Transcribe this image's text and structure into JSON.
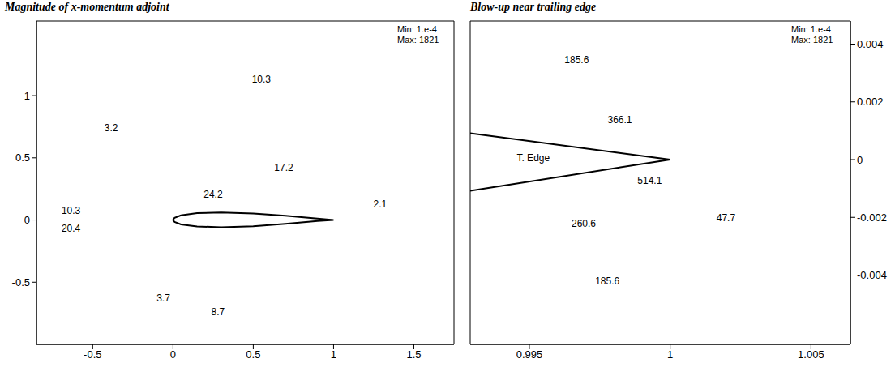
{
  "chart_data": [
    {
      "type": "contour",
      "title": "Magnitude of x-momentum adjoint",
      "xlim": [
        -0.85,
        1.75
      ],
      "ylim": [
        -1.0,
        1.6
      ],
      "xticks": [
        -0.5,
        0,
        0.5,
        1,
        1.5
      ],
      "yticks": [
        -0.5,
        0,
        0.5,
        1
      ],
      "min_label": "Min: 1.e-4",
      "max_label": "Max: 1821",
      "series": [
        {
          "color": "#000000",
          "x": [
            1,
            0.9,
            0.7,
            0.5,
            0.3,
            0.15,
            0.05,
            0.01,
            0,
            0.01,
            0.05,
            0.15,
            0.3,
            0.5,
            0.7,
            0.9,
            1
          ],
          "values": [
            0,
            0.012,
            0.035,
            0.052,
            0.06,
            0.055,
            0.038,
            0.018,
            0,
            -0.015,
            -0.035,
            -0.052,
            -0.058,
            -0.05,
            -0.03,
            -0.008,
            0
          ]
        }
      ],
      "annotations": [
        {
          "text": "3.2",
          "x": -0.385,
          "y": 0.74
        },
        {
          "text": "10.3",
          "x": 0.55,
          "y": 1.13
        },
        {
          "text": "17.2",
          "x": 0.69,
          "y": 0.42
        },
        {
          "text": "24.2",
          "x": 0.25,
          "y": 0.21
        },
        {
          "text": "10.3",
          "x": -0.635,
          "y": 0.08
        },
        {
          "text": "20.4",
          "x": -0.635,
          "y": -0.065
        },
        {
          "text": "2.1",
          "x": 1.29,
          "y": 0.13
        },
        {
          "text": "3.7",
          "x": -0.06,
          "y": -0.63
        },
        {
          "text": "8.7",
          "x": 0.28,
          "y": -0.74
        }
      ]
    },
    {
      "type": "contour",
      "title": "Blow-up near trailing edge",
      "xlim": [
        0.9929,
        1.0064
      ],
      "ylim": [
        -0.0064,
        0.0048
      ],
      "xticks": [
        0.995,
        1,
        1.005
      ],
      "yticks": [
        -0.004,
        -0.002,
        0,
        0.002,
        0.004
      ],
      "min_label": "Min: 1.e-4",
      "max_label": "Max: 1821",
      "series": [
        {
          "color": "#000000",
          "x": [
            0.9929,
            1,
            0.9929
          ],
          "values": [
            0.00091,
            0,
            -0.00108
          ]
        }
      ],
      "annotations": [
        {
          "text": "T. Edge",
          "x": 0.99514,
          "y": 6e-05
        },
        {
          "text": "185.6",
          "x": 0.99668,
          "y": 0.00346
        },
        {
          "text": "366.1",
          "x": 0.99821,
          "y": 0.00139
        },
        {
          "text": "514.1",
          "x": 0.99927,
          "y": -0.00071
        },
        {
          "text": "260.6",
          "x": 0.99693,
          "y": -0.00221
        },
        {
          "text": "185.6",
          "x": 0.99777,
          "y": -0.0042
        },
        {
          "text": "47.7",
          "x": 1.00198,
          "y": -0.002
        }
      ]
    }
  ]
}
